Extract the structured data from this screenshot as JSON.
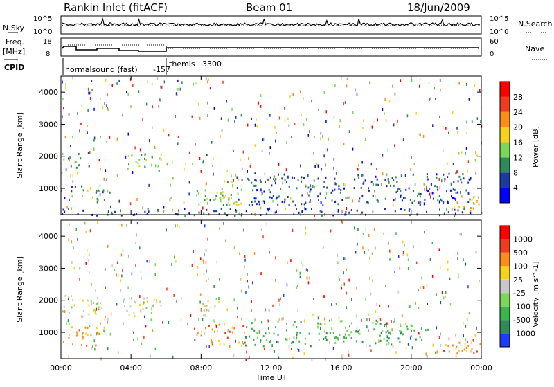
{
  "header": {
    "station": "Rankin Inlet (fitACF)",
    "beam": "Beam 01",
    "date": "18/Jun/2009"
  },
  "top_panel": {
    "left_label": "N.Sky",
    "right_label": "N.Search",
    "left_ticks": [
      "10^5",
      "10^0"
    ],
    "right_ticks": [
      "10^5",
      "10^0"
    ]
  },
  "freq_panel": {
    "left_label_1": "Freq.",
    "left_label_2": "[MHz]",
    "right_label": "Nave",
    "left_ticks": [
      "18",
      "8"
    ],
    "right_ticks": [
      "60",
      "0"
    ]
  },
  "cpid": {
    "label": "CPID",
    "mode1": "normalsound (fast)",
    "mode1_id": "-157",
    "mode2": "themis",
    "mode2_id": "3300"
  },
  "x_axis": {
    "title": "Time UT",
    "ticks": [
      "00:00",
      "04:00",
      "08:00",
      "12:00",
      "16:00",
      "20:00",
      "00:00"
    ]
  },
  "chart_data": [
    {
      "type": "heatmap",
      "panel": "power",
      "ylabel": "Slant Range [km]",
      "yticks": [
        1000,
        2000,
        3000,
        4000
      ],
      "ylim": [
        180,
        4500
      ],
      "xlim_hours": [
        0,
        24
      ],
      "colorbar": {
        "label": "Power [dB]",
        "ticks": [
          "4",
          "8",
          "12",
          "16",
          "20",
          "24",
          "28"
        ],
        "colors": [
          "#0000ff",
          "#1e3a9e",
          "#2e8b57",
          "#7cd65a",
          "#f5d21d",
          "#ff8c1a",
          "#f03c1e",
          "#ff0000"
        ]
      },
      "echo_regions": [
        {
          "t_start": 0.0,
          "t_end": 1.6,
          "r_min": 1600,
          "r_max": 2200,
          "level": 2
        },
        {
          "t_start": 0.0,
          "t_end": 2.8,
          "r_min": 600,
          "r_max": 1100,
          "level": 2
        },
        {
          "t_start": 3.7,
          "t_end": 5.8,
          "r_min": 1500,
          "r_max": 2100,
          "level": 3
        },
        {
          "t_start": 7.7,
          "t_end": 10.3,
          "r_min": 500,
          "r_max": 1300,
          "level": 3
        },
        {
          "t_start": 7.8,
          "t_end": 8.8,
          "r_min": 1700,
          "r_max": 2100,
          "level": 2
        },
        {
          "t_start": 10.0,
          "t_end": 23.5,
          "r_min": 500,
          "r_max": 1500,
          "level": 1
        },
        {
          "t_start": 22.0,
          "t_end": 24.0,
          "r_min": 200,
          "r_max": 800,
          "level": 4
        },
        {
          "t_start": 0.0,
          "t_end": 24.0,
          "r_min": 180,
          "r_max": 400,
          "level": 1
        }
      ]
    },
    {
      "type": "heatmap",
      "panel": "velocity",
      "ylabel": "Slant Range [km]",
      "yticks": [
        1000,
        2000,
        3000,
        4000
      ],
      "ylim": [
        180,
        4500
      ],
      "xlim_hours": [
        0,
        24
      ],
      "colorbar": {
        "label": "Velocity [m s^-1]",
        "ticks": [
          "1000",
          "500",
          "100",
          "25",
          "-25",
          "-100",
          "-500",
          "-1000"
        ],
        "colors": [
          "#1e3cff",
          "#2e8b57",
          "#3cb44b",
          "#7cd65a",
          "#c8c8c8",
          "#f5d21d",
          "#ff8c1a",
          "#f03c1e",
          "#ff0000"
        ]
      },
      "echo_regions": [
        {
          "t_start": 0.0,
          "t_end": 2.5,
          "r_min": 1600,
          "r_max": 2200,
          "level": 4
        },
        {
          "t_start": 0.0,
          "t_end": 2.5,
          "r_min": 600,
          "r_max": 1200,
          "level": 6
        },
        {
          "t_start": 3.5,
          "t_end": 5.8,
          "r_min": 1500,
          "r_max": 2100,
          "level": 4
        },
        {
          "t_start": 7.5,
          "t_end": 10.5,
          "r_min": 600,
          "r_max": 1300,
          "level": 6
        },
        {
          "t_start": 7.8,
          "t_end": 9.0,
          "r_min": 1700,
          "r_max": 2100,
          "level": 4
        },
        {
          "t_start": 10.5,
          "t_end": 21.0,
          "r_min": 600,
          "r_max": 1400,
          "level": 2
        },
        {
          "t_start": 21.5,
          "t_end": 24.0,
          "r_min": 200,
          "r_max": 800,
          "level": 6
        }
      ]
    }
  ]
}
